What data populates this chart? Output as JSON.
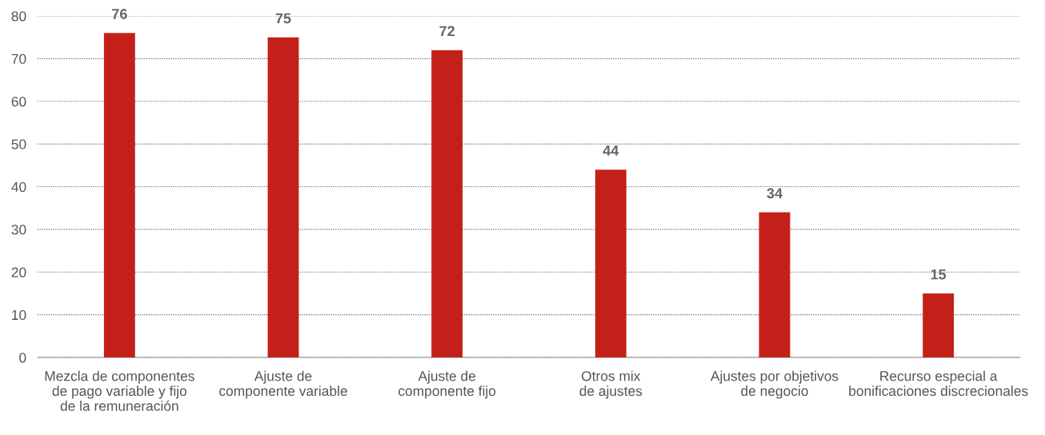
{
  "chart_data": {
    "type": "bar",
    "categories": [
      "Mezcla de componentes\nde pago variable y fijo\nde la remuneración",
      "Ajuste de\ncomponente variable",
      "Ajuste de\ncomponente fijo",
      "Otros mix\nde ajustes",
      "Ajustes por objetivos\nde negocio",
      "Recurso especial a\nbonificaciones discrecionales"
    ],
    "values": [
      76,
      75,
      72,
      44,
      34,
      15
    ],
    "color": "#c4201a",
    "ylim": [
      0,
      80
    ],
    "yticks": [
      0,
      10,
      20,
      30,
      40,
      50,
      60,
      70,
      80
    ],
    "grid": "y",
    "data_labels": true
  }
}
